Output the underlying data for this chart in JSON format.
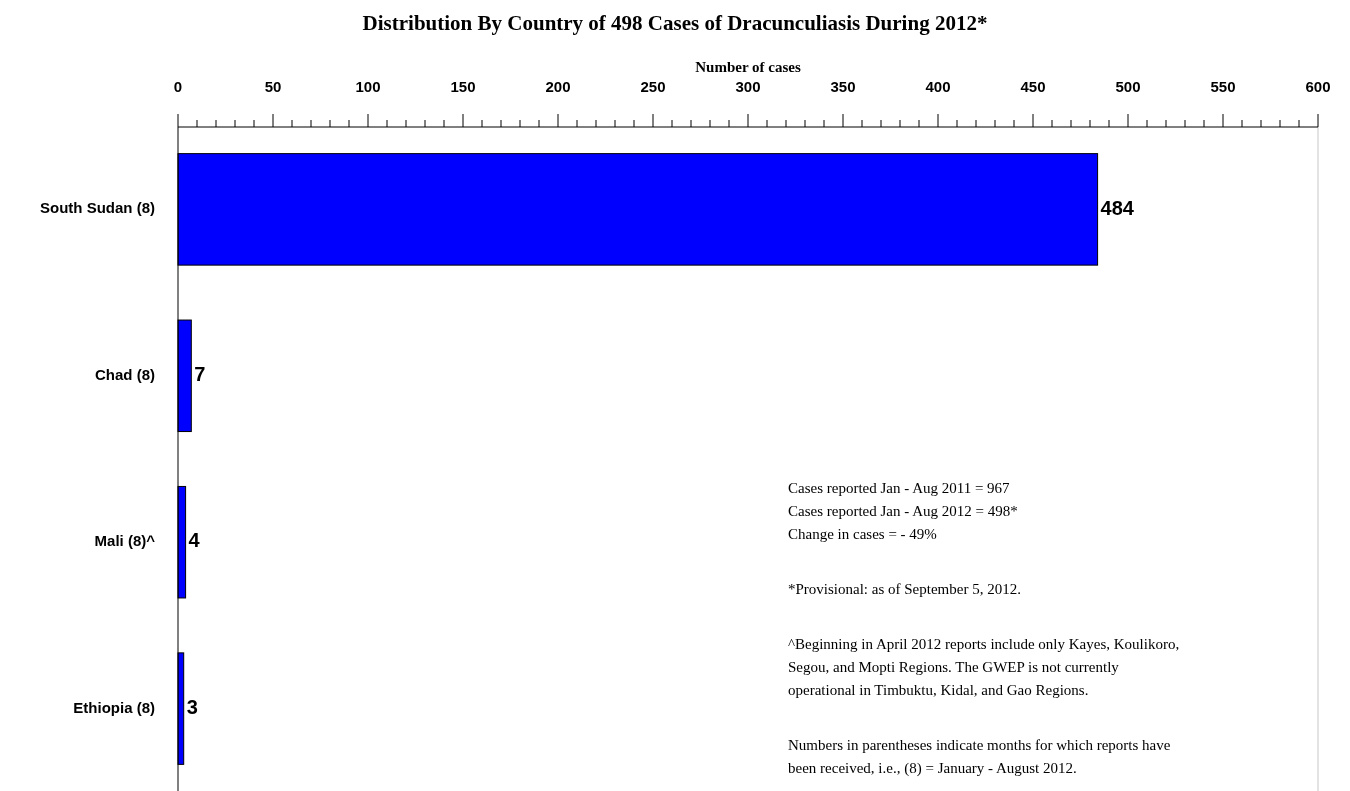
{
  "chart_data": {
    "type": "bar",
    "orientation": "horizontal",
    "title": "Distribution By Country of 498 Cases of Dracunculiasis During 2012*",
    "xlabel": "Number of cases",
    "categories": [
      "South Sudan (8)",
      "Chad (8)",
      "Mali (8)^",
      "Ethiopia (8)"
    ],
    "values": [
      484,
      7,
      4,
      3
    ],
    "color": "#0000ff",
    "data_labels": true,
    "xlim": [
      0,
      600
    ],
    "xticks": [
      0,
      {
        "value": 10,
        "label": null
      },
      {
        "value": 20,
        "label": null
      },
      {
        "value": 30,
        "label": null
      },
      {
        "value": 40,
        "label": null
      },
      50,
      {
        "value": 60,
        "label": null
      },
      {
        "value": 70,
        "label": null
      },
      {
        "value": 80,
        "label": null
      },
      {
        "value": 90,
        "label": null
      },
      100,
      {
        "value": 110,
        "label": null
      },
      {
        "value": 120,
        "label": null
      },
      {
        "value": 130,
        "label": null
      },
      {
        "value": 140,
        "label": null
      },
      150,
      {
        "value": 160,
        "label": null
      },
      {
        "value": 170,
        "label": null
      },
      {
        "value": 180,
        "label": null
      },
      {
        "value": 190,
        "label": null
      },
      200,
      {
        "value": 210,
        "label": null
      },
      {
        "value": 220,
        "label": null
      },
      {
        "value": 230,
        "label": null
      },
      {
        "value": 240,
        "label": null
      },
      250,
      {
        "value": 260,
        "label": null
      },
      {
        "value": 270,
        "label": null
      },
      {
        "value": 280,
        "label": null
      },
      {
        "value": 290,
        "label": null
      },
      300,
      {
        "value": 310,
        "label": null
      },
      {
        "value": 320,
        "label": null
      },
      {
        "value": 330,
        "label": null
      },
      {
        "value": 340,
        "label": null
      },
      350,
      {
        "value": 360,
        "label": null
      },
      {
        "value": 370,
        "label": null
      },
      {
        "value": 380,
        "label": null
      },
      {
        "value": 390,
        "label": null
      },
      400,
      {
        "value": 410,
        "label": null
      },
      {
        "value": 420,
        "label": null
      },
      {
        "value": 430,
        "label": null
      },
      {
        "value": 440,
        "label": null
      },
      450,
      {
        "value": 460,
        "label": null
      },
      {
        "value": 470,
        "label": null
      },
      {
        "value": 480,
        "label": null
      },
      {
        "value": 490,
        "label": null
      },
      500,
      {
        "value": 510,
        "label": null
      },
      {
        "value": 520,
        "label": null
      },
      {
        "value": 530,
        "label": null
      },
      {
        "value": 540,
        "label": null
      },
      550,
      {
        "value": 560,
        "label": null
      },
      {
        "value": 570,
        "label": null
      },
      {
        "value": 580,
        "label": null
      },
      {
        "value": 590,
        "label": null
      },
      600
    ],
    "annotations": [
      "Cases reported Jan - Aug 2011 = 967\nCases reported Jan - Aug 2012 = 498*\nChange in cases = - 49%",
      "*Provisional: as of September 5, 2012.",
      "^Beginning in April 2012 reports include only Kayes, Koulikoro,\nSegou, and Mopti Regions. The GWEP is not currently\noperational in Timbuktu, Kidal, and Gao Regions.",
      "Numbers in parentheses indicate months for which reports have\nbeen received, i.e., (8) = January - August 2012."
    ]
  }
}
